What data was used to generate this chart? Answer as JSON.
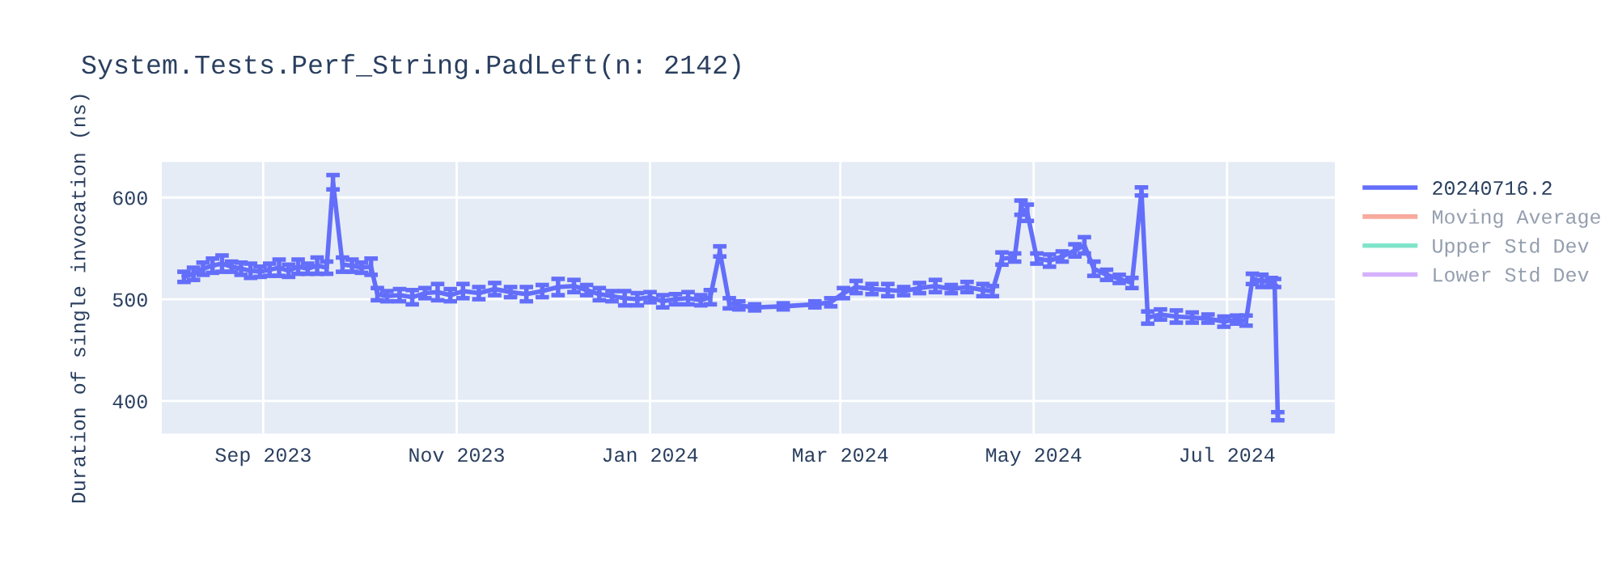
{
  "chart_data": {
    "type": "line",
    "title": "System.Tests.Perf_String.PadLeft(n: 2142)",
    "ylabel": "Duration of single invocation (ns)",
    "x": [
      "2023-08-07",
      "2023-08-10",
      "2023-08-13",
      "2023-08-16",
      "2023-08-19",
      "2023-08-22",
      "2023-08-25",
      "2023-08-28",
      "2023-08-31",
      "2023-09-03",
      "2023-09-06",
      "2023-09-09",
      "2023-09-12",
      "2023-09-15",
      "2023-09-18",
      "2023-09-21",
      "2023-09-23",
      "2023-09-26",
      "2023-09-29",
      "2023-10-02",
      "2023-10-05",
      "2023-10-07",
      "2023-10-10",
      "2023-10-14",
      "2023-10-18",
      "2023-10-22",
      "2023-10-26",
      "2023-10-30",
      "2023-11-03",
      "2023-11-08",
      "2023-11-13",
      "2023-11-18",
      "2023-11-23",
      "2023-11-28",
      "2023-12-03",
      "2023-12-08",
      "2023-12-12",
      "2023-12-16",
      "2023-12-20",
      "2023-12-24",
      "2023-12-28",
      "2024-01-01",
      "2024-01-05",
      "2024-01-09",
      "2024-01-13",
      "2024-01-17",
      "2024-01-20",
      "2024-01-23",
      "2024-01-26",
      "2024-01-29",
      "2024-02-03",
      "2024-02-12",
      "2024-02-22",
      "2024-02-27",
      "2024-03-02",
      "2024-03-06",
      "2024-03-11",
      "2024-03-16",
      "2024-03-21",
      "2024-03-26",
      "2024-03-31",
      "2024-04-05",
      "2024-04-10",
      "2024-04-15",
      "2024-04-18",
      "2024-04-21",
      "2024-04-25",
      "2024-04-27",
      "2024-04-29",
      "2024-05-02",
      "2024-05-06",
      "2024-05-10",
      "2024-05-14",
      "2024-05-17",
      "2024-05-20",
      "2024-05-24",
      "2024-05-28",
      "2024-06-01",
      "2024-06-04",
      "2024-06-06",
      "2024-06-10",
      "2024-06-15",
      "2024-06-20",
      "2024-06-25",
      "2024-06-30",
      "2024-07-04",
      "2024-07-07",
      "2024-07-09",
      "2024-07-12",
      "2024-07-15",
      "2024-07-16",
      "2024-07-17"
    ],
    "ylim": [
      368,
      635
    ],
    "yticks": [
      400,
      500,
      600
    ],
    "xlim": [
      "2023-07-31",
      "2024-08-04"
    ],
    "xticks": [
      {
        "value": "2023-09-01",
        "label": "Sep 2023"
      },
      {
        "value": "2023-11-01",
        "label": "Nov 2023"
      },
      {
        "value": "2024-01-01",
        "label": "Jan 2024"
      },
      {
        "value": "2024-03-01",
        "label": "Mar 2024"
      },
      {
        "value": "2024-05-01",
        "label": "May 2024"
      },
      {
        "value": "2024-07-01",
        "label": "Jul 2024"
      }
    ],
    "grid": true,
    "legend": "top right",
    "marker": "none",
    "line_style": "solid",
    "series": [
      {
        "name": "20240716.2",
        "color": "#636efa",
        "values": [
          522,
          525,
          530,
          533,
          535,
          532,
          530,
          528,
          527,
          529,
          531,
          528,
          532,
          530,
          533,
          531,
          615,
          534,
          533,
          531,
          532,
          505,
          503,
          504,
          502,
          506,
          507,
          504,
          508,
          506,
          510,
          507,
          505,
          508,
          512,
          513,
          509,
          505,
          503,
          501,
          500,
          502,
          498,
          500,
          501,
          499,
          502,
          547,
          496,
          494,
          492,
          493,
          495,
          497,
          506,
          512,
          510,
          509,
          508,
          511,
          513,
          510,
          512,
          509,
          508,
          540,
          541,
          590,
          585,
          540,
          538,
          542,
          548,
          553,
          530,
          524,
          520,
          516,
          606,
          482,
          485,
          483,
          482,
          481,
          478,
          480,
          479,
          520,
          518,
          517,
          516,
          385
        ],
        "errors": [
          5,
          6,
          6,
          7,
          8,
          5,
          6,
          7,
          5,
          6,
          8,
          6,
          7,
          5,
          8,
          6,
          7,
          7,
          6,
          5,
          8,
          6,
          5,
          6,
          7,
          5,
          8,
          6,
          7,
          6,
          6,
          5,
          7,
          6,
          8,
          6,
          5,
          6,
          5,
          7,
          6,
          5,
          6,
          5,
          6,
          5,
          7,
          5,
          5,
          4,
          3,
          3,
          3,
          4,
          5,
          6,
          5,
          6,
          4,
          5,
          6,
          4,
          5,
          6,
          5,
          6,
          4,
          7,
          8,
          5,
          6,
          5,
          6,
          8,
          7,
          5,
          4,
          5,
          4,
          6,
          5,
          6,
          5,
          4,
          5,
          4,
          5,
          5,
          6,
          4,
          4,
          4
        ]
      },
      {
        "name": "Moving Average",
        "color": "#ef553b",
        "values": [
          null,
          null,
          null,
          null,
          null,
          null,
          null,
          null,
          null,
          null,
          null,
          null,
          null,
          null,
          null,
          null,
          null,
          null,
          null,
          null,
          null,
          null,
          null,
          null,
          null,
          null,
          null,
          null,
          null,
          null,
          null,
          null,
          null,
          null,
          null,
          null,
          null,
          null,
          null,
          null,
          null,
          null,
          null,
          null,
          null,
          null,
          null,
          null,
          null,
          null,
          null,
          null,
          null,
          null,
          null,
          null,
          null,
          null,
          null,
          null,
          null,
          null,
          null,
          null,
          null,
          null,
          null,
          null,
          null,
          null,
          null,
          null,
          null,
          null,
          null,
          null,
          null,
          null,
          null,
          null,
          null,
          null,
          null,
          null,
          null,
          null,
          null,
          null,
          null,
          null,
          null,
          null
        ]
      },
      {
        "name": "Upper Std Dev",
        "color": "#00cc96",
        "values": [
          null,
          null,
          null,
          null,
          null,
          null,
          null,
          null,
          null,
          null,
          null,
          null,
          null,
          null,
          null,
          null,
          null,
          null,
          null,
          null,
          null,
          null,
          null,
          null,
          null,
          null,
          null,
          null,
          null,
          null,
          null,
          null,
          null,
          null,
          null,
          null,
          null,
          null,
          null,
          null,
          null,
          null,
          null,
          null,
          null,
          null,
          null,
          null,
          null,
          null,
          null,
          null,
          null,
          null,
          null,
          null,
          null,
          null,
          null,
          null,
          null,
          null,
          null,
          null,
          null,
          null,
          null,
          null,
          null,
          null,
          null,
          null,
          null,
          null,
          null,
          null,
          null,
          null,
          null,
          null,
          null,
          null,
          null,
          null,
          null,
          null,
          null,
          null,
          null,
          null,
          null,
          null
        ]
      },
      {
        "name": "Lower Std Dev",
        "color": "#ab63fa",
        "values": [
          null,
          null,
          null,
          null,
          null,
          null,
          null,
          null,
          null,
          null,
          null,
          null,
          null,
          null,
          null,
          null,
          null,
          null,
          null,
          null,
          null,
          null,
          null,
          null,
          null,
          null,
          null,
          null,
          null,
          null,
          null,
          null,
          null,
          null,
          null,
          null,
          null,
          null,
          null,
          null,
          null,
          null,
          null,
          null,
          null,
          null,
          null,
          null,
          null,
          null,
          null,
          null,
          null,
          null,
          null,
          null,
          null,
          null,
          null,
          null,
          null,
          null,
          null,
          null,
          null,
          null,
          null,
          null,
          null,
          null,
          null,
          null,
          null,
          null,
          null,
          null,
          null,
          null,
          null,
          null,
          null,
          null,
          null,
          null,
          null,
          null,
          null,
          null,
          null,
          null,
          null,
          null
        ]
      }
    ]
  }
}
